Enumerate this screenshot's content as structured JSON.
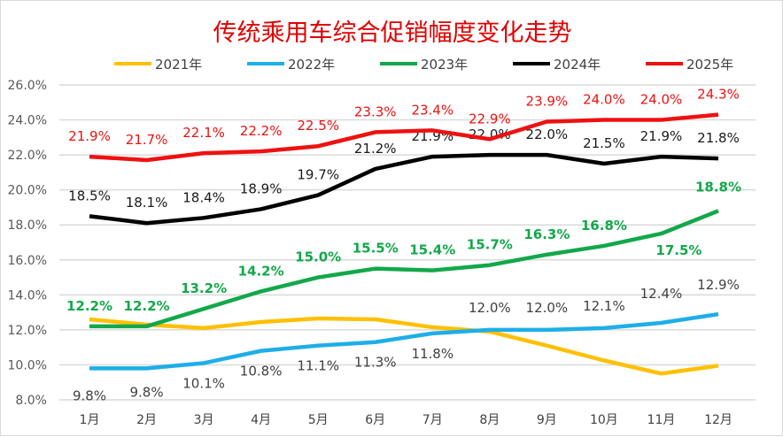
{
  "chart_data": {
    "type": "line",
    "title": "传统乘用车综合促销幅度变化走势",
    "categories": [
      "1月",
      "2月",
      "3月",
      "4月",
      "5月",
      "6月",
      "7月",
      "8月",
      "9月",
      "10月",
      "11月",
      "12月"
    ],
    "ylim": [
      8,
      26
    ],
    "yticks": [
      "8.0%",
      "10.0%",
      "12.0%",
      "14.0%",
      "16.0%",
      "18.0%",
      "20.0%",
      "22.0%",
      "24.0%",
      "26.0%"
    ],
    "grid": true,
    "legend": "top",
    "series": [
      {
        "name": "2021年",
        "color": "#ffc000",
        "labels": false,
        "values": [
          12.6,
          12.3,
          12.1,
          12.45,
          12.65,
          12.6,
          12.15,
          11.9,
          11.1,
          10.25,
          9.5,
          9.95
        ]
      },
      {
        "name": "2022年",
        "color": "#1eaee8",
        "labels": true,
        "label_color": "#404040",
        "values": [
          9.8,
          9.8,
          10.1,
          10.8,
          11.1,
          11.3,
          11.8,
          12.0,
          12.0,
          12.1,
          12.4,
          12.9
        ]
      },
      {
        "name": "2023年",
        "color": "#12a84a",
        "labels": true,
        "label_color": "#12a84a",
        "values": [
          12.2,
          12.2,
          13.2,
          14.2,
          15.0,
          15.5,
          15.4,
          15.7,
          16.3,
          16.8,
          17.5,
          18.8
        ]
      },
      {
        "name": "2024年",
        "color": "#000000",
        "labels": true,
        "label_color": "#1a1a1a",
        "values": [
          18.5,
          18.1,
          18.4,
          18.9,
          19.7,
          21.2,
          21.9,
          22.0,
          22.0,
          21.5,
          21.9,
          21.8
        ]
      },
      {
        "name": "2025年",
        "color": "#ee1111",
        "labels": true,
        "label_color": "#ee1111",
        "values": [
          21.9,
          21.7,
          22.1,
          22.2,
          22.5,
          23.3,
          23.4,
          22.9,
          23.9,
          24.0,
          24.0,
          24.3
        ]
      }
    ]
  }
}
